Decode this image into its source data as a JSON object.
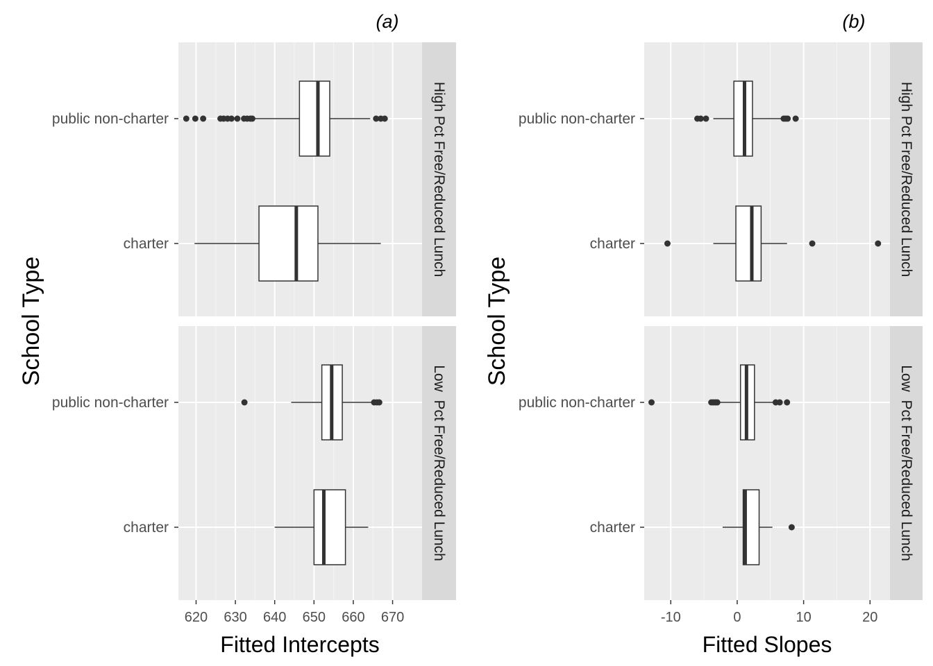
{
  "chart_data": [
    {
      "type": "boxplot",
      "orientation": "horizontal",
      "title": "(a)",
      "xlabel": "Fitted Intercepts",
      "ylabel": "School Type",
      "xlim": [
        615.5,
        677.5
      ],
      "xticks": [
        620,
        630,
        640,
        650,
        660,
        670
      ],
      "grid": true,
      "categories": [
        "public non-charter",
        "charter"
      ],
      "facets": [
        {
          "label": "High Pct Free/Reduced Lunch",
          "boxes": [
            {
              "category": "public non-charter",
              "whisker_low": 634.8,
              "q1": 646.3,
              "median": 651.0,
              "q3": 654.0,
              "whisker_high": 664.3,
              "outliers": [
                617.5,
                619.8,
                621.8,
                626.2,
                627.0,
                628.0,
                629.0,
                630.5,
                632.2,
                633.0,
                633.8,
                634.3,
                665.8,
                667.0,
                668.0
              ]
            },
            {
              "category": "charter",
              "whisker_low": 619.6,
              "q1": 636.0,
              "median": 645.5,
              "q3": 651.0,
              "whisker_high": 667.0,
              "outliers": []
            }
          ]
        },
        {
          "label": "Low  Pct Free/Reduced Lunch",
          "boxes": [
            {
              "category": "public non-charter",
              "whisker_low": 644.2,
              "q1": 652.0,
              "median": 654.5,
              "q3": 657.2,
              "whisker_high": 664.8,
              "outliers": [
                632.3,
                665.3,
                666.0,
                666.6
              ]
            },
            {
              "category": "charter",
              "whisker_low": 640.0,
              "q1": 650.0,
              "median": 652.5,
              "q3": 658.0,
              "whisker_high": 663.8,
              "outliers": []
            }
          ]
        }
      ]
    },
    {
      "type": "boxplot",
      "orientation": "horizontal",
      "title": "(b)",
      "xlabel": "Fitted Slopes",
      "ylabel": "School Type",
      "xlim": [
        -14.0,
        23.0
      ],
      "xticks": [
        -10,
        0,
        10,
        20
      ],
      "xtick_labels": [
        "-10",
        "0",
        "10",
        "20"
      ],
      "grid": true,
      "categories": [
        "public non-charter",
        "charter"
      ],
      "facets": [
        {
          "label": "High Pct Free/Reduced Lunch",
          "boxes": [
            {
              "category": "public non-charter",
              "whisker_low": -3.6,
              "q1": -0.5,
              "median": 1.1,
              "q3": 2.3,
              "whisker_high": 6.6,
              "outliers": [
                -6.0,
                -5.5,
                -4.7,
                7.0,
                7.3,
                7.6,
                8.8
              ]
            },
            {
              "category": "charter",
              "whisker_low": -3.6,
              "q1": -0.2,
              "median": 2.2,
              "q3": 3.6,
              "whisker_high": 7.5,
              "outliers": [
                -10.5,
                11.3,
                21.2
              ]
            }
          ]
        },
        {
          "label": "Low  Pct Free/Reduced Lunch",
          "boxes": [
            {
              "category": "public non-charter",
              "whisker_low": -2.7,
              "q1": 0.5,
              "median": 1.4,
              "q3": 2.6,
              "whisker_high": 5.4,
              "outliers": [
                -12.9,
                -3.9,
                -3.6,
                -3.3,
                -3.0,
                5.8,
                6.4,
                7.5
              ]
            },
            {
              "category": "charter",
              "whisker_low": -2.2,
              "q1": 0.9,
              "median": 1.2,
              "q3": 3.3,
              "whisker_high": 5.3,
              "outliers": [
                8.2
              ]
            }
          ]
        }
      ]
    }
  ]
}
